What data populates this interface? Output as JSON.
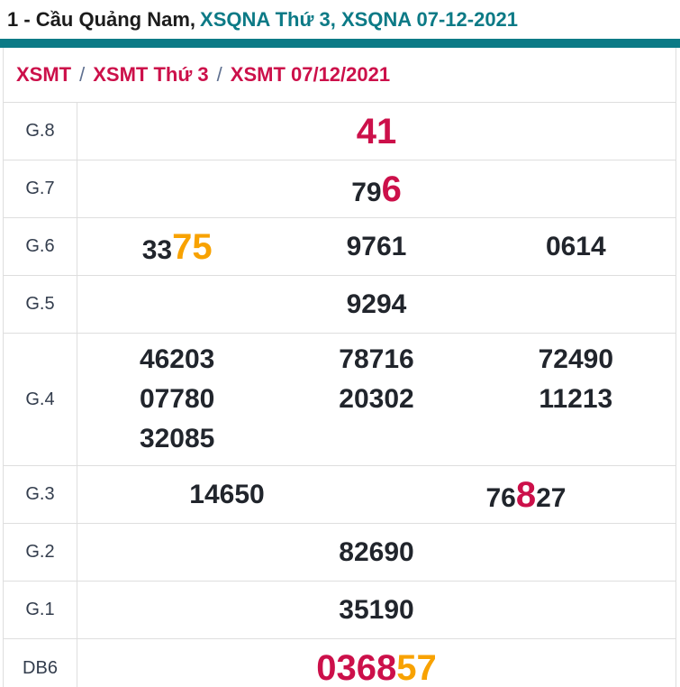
{
  "title": {
    "text_black": "1 - Cầu Quảng Nam,",
    "text_teal": "XSQNA Thứ 3, XSQNA 07-12-2021"
  },
  "breadcrumb": {
    "separator": "/",
    "items": [
      "XSMT",
      "XSMT Thứ 3",
      "XSMT 07/12/2021"
    ]
  },
  "colors": {
    "teal": "#0c7a86",
    "crimson": "#cc104a",
    "orange": "#f8a201",
    "digit": "#21252c",
    "label": "#333d4d",
    "border": "#dedede",
    "separator": "#5f7090"
  },
  "results_table": {
    "rows": [
      {
        "label": "G.8",
        "layout": "full",
        "values": [
          [
            {
              "t": "41",
              "c": "crimson",
              "big": true
            }
          ]
        ]
      },
      {
        "label": "G.7",
        "layout": "full",
        "values": [
          [
            {
              "t": "79"
            },
            {
              "t": "6",
              "c": "crimson",
              "big": true
            }
          ]
        ]
      },
      {
        "label": "G.6",
        "layout": "third",
        "values": [
          [
            {
              "t": "33"
            },
            {
              "t": "75",
              "c": "orange",
              "big": true
            }
          ],
          [
            {
              "t": "9761"
            }
          ],
          [
            {
              "t": "0614"
            }
          ]
        ]
      },
      {
        "label": "G.5",
        "layout": "full",
        "values": [
          [
            {
              "t": "9294"
            }
          ]
        ]
      },
      {
        "label": "G.4",
        "layout": "third",
        "values": [
          [
            {
              "t": "46203"
            }
          ],
          [
            {
              "t": "78716"
            }
          ],
          [
            {
              "t": "72490"
            }
          ],
          [
            {
              "t": "07780"
            }
          ],
          [
            {
              "t": "20302"
            }
          ],
          [
            {
              "t": "11213"
            }
          ],
          [
            {
              "t": "32085"
            }
          ]
        ]
      },
      {
        "label": "G.3",
        "layout": "half",
        "values": [
          [
            {
              "t": "14650"
            }
          ],
          [
            {
              "t": "76"
            },
            {
              "t": "8",
              "c": "crimson",
              "big": true
            },
            {
              "t": "27"
            }
          ]
        ]
      },
      {
        "label": "G.2",
        "layout": "full",
        "values": [
          [
            {
              "t": "82690"
            }
          ]
        ]
      },
      {
        "label": "G.1",
        "layout": "full",
        "values": [
          [
            {
              "t": "35190"
            }
          ]
        ]
      },
      {
        "label": "DB6",
        "layout": "full",
        "values": [
          [
            {
              "t": "0368",
              "c": "crimson",
              "big": true
            },
            {
              "t": "57",
              "c": "orange",
              "big": true
            }
          ]
        ]
      }
    ]
  }
}
